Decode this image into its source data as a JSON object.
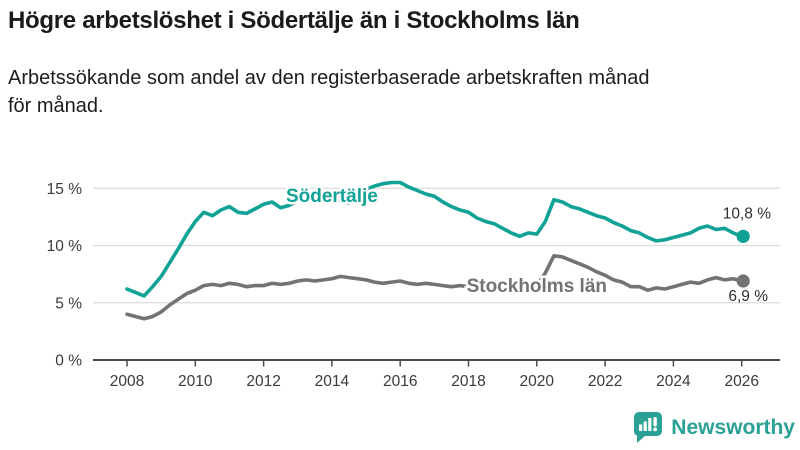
{
  "header": {
    "title": "Högre arbetslöshet i Södertälje än i Stockholms län",
    "subtitle_line1": "Arbetssökande som andel av den registerbaserade arbetskraften månad",
    "subtitle_line2": "för månad."
  },
  "branding": {
    "logo_text": "Newsworthy",
    "logo_icon": "bar-chart-speech-bubble-icon",
    "color": "#2ba094"
  },
  "colors": {
    "teal": "#11a296",
    "gray": "#737373",
    "grid": "#dcdcdc",
    "axis": "#4a4a4a",
    "tick_label": "#3a3a3a",
    "value_label": "#2e2e2e"
  },
  "chart_data": {
    "type": "line",
    "title": "Högre arbetslöshet i Södertälje än i Stockholms län",
    "subtitle": "Arbetssökande som andel av den registerbaserade arbetskraften månad för månad.",
    "xlabel": "",
    "ylabel": "",
    "ylim": [
      0,
      16.5
    ],
    "xlim": [
      2007.5,
      2026.5
    ],
    "grid": "horizontal",
    "legend": "inline-labels",
    "y_ticks": [
      {
        "value": 0,
        "label": "0 %"
      },
      {
        "value": 5,
        "label": "5 %"
      },
      {
        "value": 10,
        "label": "10 %"
      },
      {
        "value": 15,
        "label": "15 %"
      }
    ],
    "x_ticks": [
      {
        "value": 2008,
        "label": "2008"
      },
      {
        "value": 2010,
        "label": "2010"
      },
      {
        "value": 2012,
        "label": "2012"
      },
      {
        "value": 2014,
        "label": "2014"
      },
      {
        "value": 2016,
        "label": "2016"
      },
      {
        "value": 2018,
        "label": "2018"
      },
      {
        "value": 2020,
        "label": "2020"
      },
      {
        "value": 2022,
        "label": "2022"
      },
      {
        "value": 2024,
        "label": "2024"
      },
      {
        "value": 2026,
        "label": "2026"
      }
    ],
    "x": [
      2008,
      2008.25,
      2008.5,
      2008.75,
      2009,
      2009.25,
      2009.5,
      2009.75,
      2010,
      2010.25,
      2010.5,
      2010.75,
      2011,
      2011.25,
      2011.5,
      2011.75,
      2012,
      2012.25,
      2012.5,
      2012.75,
      2013,
      2013.25,
      2013.5,
      2013.75,
      2014,
      2014.25,
      2014.5,
      2014.75,
      2015,
      2015.25,
      2015.5,
      2015.75,
      2016,
      2016.25,
      2016.5,
      2016.75,
      2017,
      2017.25,
      2017.5,
      2017.75,
      2018,
      2018.25,
      2018.5,
      2018.75,
      2019,
      2019.25,
      2019.5,
      2019.75,
      2020,
      2020.25,
      2020.5,
      2020.75,
      2021,
      2021.25,
      2021.5,
      2021.75,
      2022,
      2022.25,
      2022.5,
      2022.75,
      2023,
      2023.25,
      2023.5,
      2023.75,
      2024,
      2024.25,
      2024.5,
      2024.75,
      2025,
      2025.25,
      2025.5,
      2025.75,
      2026
    ],
    "series": [
      {
        "id": "sodertalje",
        "name": "Södertälje",
        "color": "#11a296",
        "end_label": "10,8 %",
        "end_value": 10.8,
        "label_x": 2014.0,
        "label_v": 13.8,
        "end_label_dy": -18,
        "end_label_x": 771,
        "values": [
          6.2,
          5.9,
          5.6,
          6.4,
          7.3,
          8.5,
          9.7,
          11.0,
          12.1,
          12.9,
          12.6,
          13.1,
          13.4,
          12.9,
          12.8,
          13.2,
          13.6,
          13.8,
          13.3,
          13.5,
          13.9,
          14.1,
          13.8,
          14.0,
          14.1,
          13.9,
          13.7,
          14.2,
          14.9,
          15.2,
          15.4,
          15.5,
          15.5,
          15.1,
          14.8,
          14.5,
          14.3,
          13.8,
          13.4,
          13.1,
          12.9,
          12.4,
          12.1,
          11.9,
          11.5,
          11.1,
          10.8,
          11.1,
          11.0,
          12.1,
          14.0,
          13.8,
          13.4,
          13.2,
          12.9,
          12.6,
          12.4,
          12.0,
          11.7,
          11.3,
          11.1,
          10.7,
          10.4,
          10.5,
          10.7,
          10.9,
          11.1,
          11.5,
          11.7,
          11.4,
          11.5,
          11.1,
          10.8
        ]
      },
      {
        "id": "stockholms-lan",
        "name": "Stockholms län",
        "color": "#737373",
        "end_label": "6,9 %",
        "end_value": 6.9,
        "label_x": 2020.0,
        "label_v": 5.95,
        "end_label_dy": 20,
        "end_label_x": 768,
        "values": [
          4.0,
          3.8,
          3.6,
          3.8,
          4.2,
          4.8,
          5.3,
          5.8,
          6.1,
          6.5,
          6.6,
          6.5,
          6.7,
          6.6,
          6.4,
          6.5,
          6.5,
          6.7,
          6.6,
          6.7,
          6.9,
          7.0,
          6.9,
          7.0,
          7.1,
          7.3,
          7.2,
          7.1,
          7.0,
          6.8,
          6.7,
          6.8,
          6.9,
          6.7,
          6.6,
          6.7,
          6.6,
          6.5,
          6.4,
          6.5,
          6.4,
          6.3,
          6.2,
          6.3,
          6.3,
          6.2,
          6.3,
          6.4,
          6.5,
          7.6,
          9.1,
          9.0,
          8.7,
          8.4,
          8.1,
          7.7,
          7.4,
          7.0,
          6.8,
          6.4,
          6.4,
          6.1,
          6.3,
          6.2,
          6.4,
          6.6,
          6.8,
          6.7,
          7.0,
          7.2,
          7.0,
          7.1,
          6.9
        ]
      }
    ]
  }
}
